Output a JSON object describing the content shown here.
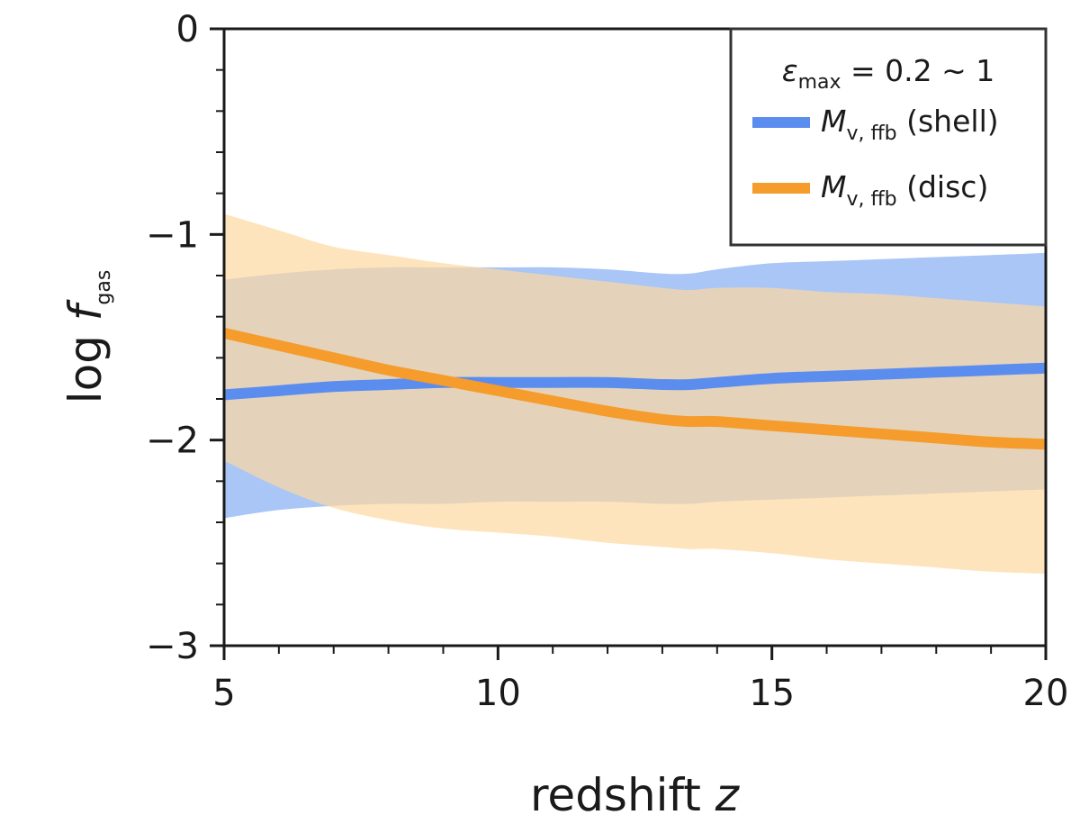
{
  "chart_data": {
    "type": "line",
    "title": "",
    "xlabel": {
      "main": "redshift ",
      "var": "z"
    },
    "ylabel": {
      "pre": "log ",
      "var": "f",
      "sub": "gas"
    },
    "xlim": [
      5,
      20
    ],
    "ylim": [
      -3,
      0
    ],
    "xticks": [
      5,
      10,
      15,
      20
    ],
    "xtick_labels": [
      "5",
      "10",
      "15",
      "20"
    ],
    "xminor": [
      6,
      7,
      8,
      9,
      11,
      12,
      13,
      14,
      16,
      17,
      18,
      19
    ],
    "yticks": [
      0,
      -1,
      -2,
      -3
    ],
    "ytick_labels": [
      "0",
      "−1",
      "−2",
      "−3"
    ],
    "yminor": [
      -0.2,
      -0.4,
      -0.6,
      -0.8,
      -1.2,
      -1.4,
      -1.6,
      -1.8,
      -2.2,
      -2.4,
      -2.6,
      -2.8
    ],
    "grid": false,
    "legend": {
      "placement": "top-right",
      "title": {
        "var": "ε",
        "sub": "max",
        "rest": " = 0.2 ∼ 1"
      }
    },
    "series": [
      {
        "name": {
          "var": "M",
          "sub": "v, ffb",
          "rest": " (shell)"
        },
        "color": "#5b8def",
        "band_color": "#a9c6f7",
        "x": [
          5,
          6,
          7,
          8,
          9,
          10,
          11,
          12,
          13,
          13.5,
          14,
          15,
          16,
          17,
          18,
          19,
          20
        ],
        "y": [
          -1.78,
          -1.76,
          -1.74,
          -1.73,
          -1.72,
          -1.72,
          -1.72,
          -1.72,
          -1.73,
          -1.73,
          -1.72,
          -1.7,
          -1.69,
          -1.68,
          -1.67,
          -1.66,
          -1.65
        ],
        "y_lower": [
          -2.38,
          -2.34,
          -2.32,
          -2.31,
          -2.31,
          -2.3,
          -2.3,
          -2.3,
          -2.31,
          -2.31,
          -2.3,
          -2.29,
          -2.28,
          -2.27,
          -2.26,
          -2.25,
          -2.24
        ],
        "y_upper": [
          -1.22,
          -1.19,
          -1.17,
          -1.16,
          -1.16,
          -1.16,
          -1.16,
          -1.17,
          -1.19,
          -1.19,
          -1.17,
          -1.14,
          -1.13,
          -1.12,
          -1.11,
          -1.1,
          -1.09
        ]
      },
      {
        "name": {
          "var": "M",
          "sub": "v, ffb",
          "rest": " (disc)"
        },
        "color": "#f59c2c",
        "band_color": "#fdd8a0",
        "x": [
          5,
          6,
          7,
          8,
          9,
          10,
          11,
          12,
          13,
          13.5,
          14,
          15,
          16,
          17,
          18,
          19,
          20
        ],
        "y": [
          -1.48,
          -1.54,
          -1.6,
          -1.66,
          -1.71,
          -1.76,
          -1.81,
          -1.86,
          -1.9,
          -1.91,
          -1.91,
          -1.93,
          -1.95,
          -1.97,
          -1.99,
          -2.01,
          -2.02
        ],
        "y_lower": [
          -2.1,
          -2.23,
          -2.33,
          -2.39,
          -2.43,
          -2.45,
          -2.47,
          -2.5,
          -2.52,
          -2.53,
          -2.53,
          -2.55,
          -2.58,
          -2.6,
          -2.62,
          -2.64,
          -2.65
        ],
        "y_upper": [
          -0.9,
          -0.98,
          -1.06,
          -1.1,
          -1.14,
          -1.17,
          -1.2,
          -1.23,
          -1.26,
          -1.27,
          -1.26,
          -1.26,
          -1.28,
          -1.29,
          -1.31,
          -1.33,
          -1.35
        ]
      }
    ]
  }
}
